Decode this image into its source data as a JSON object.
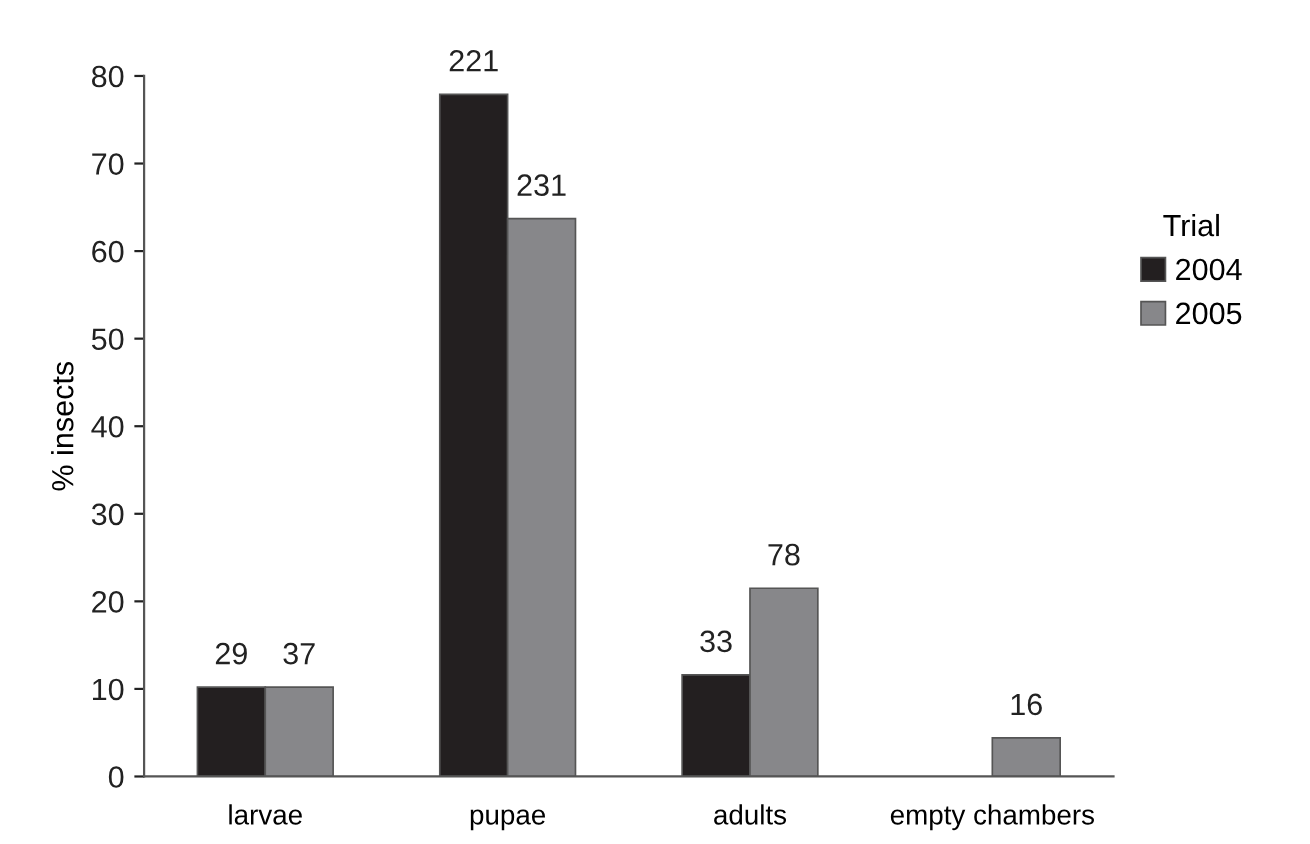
{
  "chart_data": {
    "type": "bar",
    "ylabel": "% insects",
    "legend_title": "Trial",
    "legend": "right",
    "categories": [
      "larvae",
      "pupae",
      "adults",
      "empty chambers"
    ],
    "series": [
      {
        "name": "2004",
        "color": "#231f20",
        "values": [
          10.2,
          77.9,
          11.6,
          null
        ]
      },
      {
        "name": "2005",
        "color": "#87878a",
        "values": [
          10.2,
          63.7,
          21.5,
          4.4
        ]
      }
    ],
    "annotations": [
      {
        "text": "29",
        "x": "larvae",
        "y": 10.2
      },
      {
        "text": "221",
        "x": "pupae",
        "y": 77.9
      },
      {
        "text": "33",
        "x": "adults",
        "y": 11.6
      },
      {
        "text": "37",
        "x": "larvae",
        "y": 10.2
      },
      {
        "text": "231",
        "x": "pupae",
        "y": 63.7
      },
      {
        "text": "78",
        "x": "adults",
        "y": 21.5
      },
      {
        "text": "16",
        "x": "empty chambers",
        "y": 4.4
      }
    ],
    "ylim": [
      0,
      80
    ],
    "yticks": [
      0,
      10,
      20,
      30,
      40,
      50,
      60,
      70,
      80
    ],
    "grid": false
  }
}
